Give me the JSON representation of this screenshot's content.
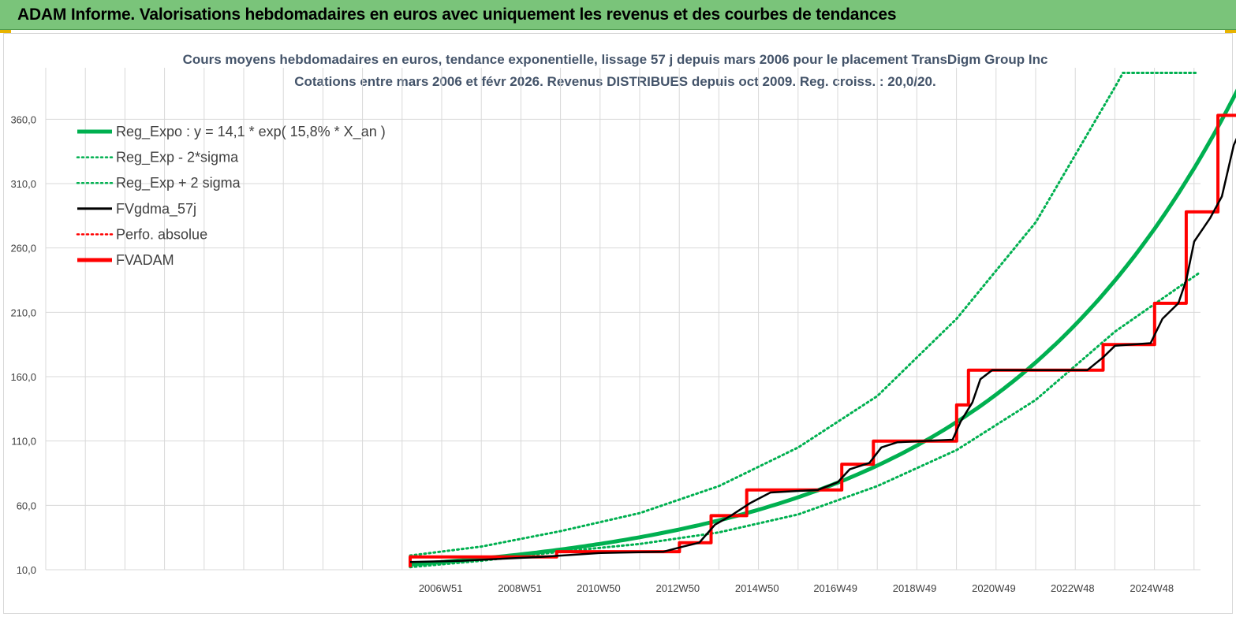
{
  "header": {
    "title": "ADAM Informe. Valorisations hebdomadaires en euros avec uniquement les revenus et des courbes de tendances"
  },
  "colors": {
    "banner": "#7ac47a",
    "trend": "#00b050",
    "price": "#000000",
    "adam": "#ff0000",
    "perf": "#ff0000"
  },
  "chart_data": {
    "type": "line",
    "title_line1": "Cours moyens hebdomadaires en euros, tendance exponentielle, lissage 57 j depuis mars 2006 pour le placement TransDigm Group Inc",
    "title_line2": "Cotations entre mars 2006 et févr 2026. Revenus DISTRIBUES depuis oct 2009. Reg. croiss. : 20,0/20.",
    "ylim": [
      10,
      400
    ],
    "y_ticks": [
      "10,0",
      "60,0",
      "110,0",
      "160,0",
      "210,0",
      "260,0",
      "310,0",
      "360,0"
    ],
    "x_range": [
      2006.2,
      2026.1
    ],
    "x_ticks": [
      {
        "label": "2006W51",
        "x": 2006.97
      },
      {
        "label": "2008W51",
        "x": 2008.97
      },
      {
        "label": "2010W50",
        "x": 2010.96
      },
      {
        "label": "2012W50",
        "x": 2012.96
      },
      {
        "label": "2014W50",
        "x": 2014.96
      },
      {
        "label": "2016W49",
        "x": 2016.94
      },
      {
        "label": "2018W49",
        "x": 2018.94
      },
      {
        "label": "2020W49",
        "x": 2020.94
      },
      {
        "label": "2022W48",
        "x": 2022.93
      },
      {
        "label": "2024W48",
        "x": 2024.93
      }
    ],
    "grid": true,
    "legend_position": "top-left",
    "legend": [
      {
        "name": "Reg_Expo : y = 14,1 * exp( 15,8% *  X_an )",
        "style": "solid-thick",
        "color": "#00b050"
      },
      {
        "name": "Reg_Exp - 2*sigma",
        "style": "dotted",
        "color": "#00b050"
      },
      {
        "name": "Reg_Exp + 2 sigma",
        "style": "dotted",
        "color": "#00b050"
      },
      {
        "name": "FVgdma_57j",
        "style": "solid",
        "color": "#000000"
      },
      {
        "name": "Perfo. absolue",
        "style": "dotted",
        "color": "#ff0000"
      },
      {
        "name": "FVADAM",
        "style": "solid-thick",
        "color": "#ff0000"
      }
    ],
    "regression": {
      "a": 14.1,
      "rate": 0.158,
      "x0": 2006.2
    },
    "series": [
      {
        "name": "Reg_Exp - 2*sigma",
        "points": [
          [
            2006.2,
            12
          ],
          [
            2008,
            17
          ],
          [
            2010,
            24
          ],
          [
            2012,
            30
          ],
          [
            2014,
            39
          ],
          [
            2016,
            53
          ],
          [
            2018,
            75
          ],
          [
            2020,
            103
          ],
          [
            2022,
            142
          ],
          [
            2024,
            195
          ],
          [
            2026.1,
            240
          ]
        ]
      },
      {
        "name": "Reg_Exp + 2 sigma",
        "points": [
          [
            2006.2,
            21
          ],
          [
            2008,
            28
          ],
          [
            2010,
            40
          ],
          [
            2012,
            54
          ],
          [
            2014,
            75
          ],
          [
            2016,
            105
          ],
          [
            2018,
            145
          ],
          [
            2020,
            205
          ],
          [
            2022,
            280
          ],
          [
            2024,
            385
          ],
          [
            2024.2,
            396
          ],
          [
            2026.1,
            396
          ]
        ]
      },
      {
        "name": "FVADAM",
        "points": [
          [
            2006.2,
            12
          ],
          [
            2006.2,
            20
          ],
          [
            2009.9,
            20
          ],
          [
            2009.9,
            24
          ],
          [
            2013.0,
            24
          ],
          [
            2013.0,
            31
          ],
          [
            2013.8,
            31
          ],
          [
            2013.8,
            52
          ],
          [
            2014.7,
            52
          ],
          [
            2014.7,
            72
          ],
          [
            2017.1,
            72
          ],
          [
            2017.1,
            92
          ],
          [
            2017.9,
            92
          ],
          [
            2017.9,
            110
          ],
          [
            2020.0,
            110
          ],
          [
            2020.0,
            138
          ],
          [
            2020.3,
            138
          ],
          [
            2020.3,
            165
          ],
          [
            2023.7,
            165
          ],
          [
            2023.7,
            185
          ],
          [
            2025.0,
            185
          ],
          [
            2025.0,
            217
          ],
          [
            2025.8,
            217
          ],
          [
            2025.8,
            288
          ],
          [
            2026.6,
            288
          ],
          [
            2026.6,
            363
          ],
          [
            2027.2,
            363
          ]
        ]
      },
      {
        "name": "FVgdma_57j",
        "points": [
          [
            2006.2,
            16
          ],
          [
            2007.5,
            17
          ],
          [
            2009.5,
            20
          ],
          [
            2011,
            23
          ],
          [
            2012.6,
            24
          ],
          [
            2013.1,
            28
          ],
          [
            2013.5,
            31
          ],
          [
            2013.9,
            45
          ],
          [
            2014.3,
            52
          ],
          [
            2014.8,
            62
          ],
          [
            2015.3,
            70
          ],
          [
            2016.5,
            72
          ],
          [
            2017.0,
            78
          ],
          [
            2017.3,
            88
          ],
          [
            2017.8,
            93
          ],
          [
            2018.1,
            105
          ],
          [
            2018.5,
            109
          ],
          [
            2019.9,
            111
          ],
          [
            2020.1,
            125
          ],
          [
            2020.4,
            140
          ],
          [
            2020.6,
            158
          ],
          [
            2020.9,
            165
          ],
          [
            2023.3,
            165
          ],
          [
            2023.7,
            175
          ],
          [
            2024.0,
            184
          ],
          [
            2024.9,
            186
          ],
          [
            2025.2,
            205
          ],
          [
            2025.6,
            217
          ],
          [
            2025.8,
            235
          ],
          [
            2026.0,
            265
          ],
          [
            2026.4,
            283
          ],
          [
            2026.7,
            300
          ],
          [
            2027.0,
            340
          ],
          [
            2027.3,
            360
          ]
        ]
      }
    ]
  }
}
